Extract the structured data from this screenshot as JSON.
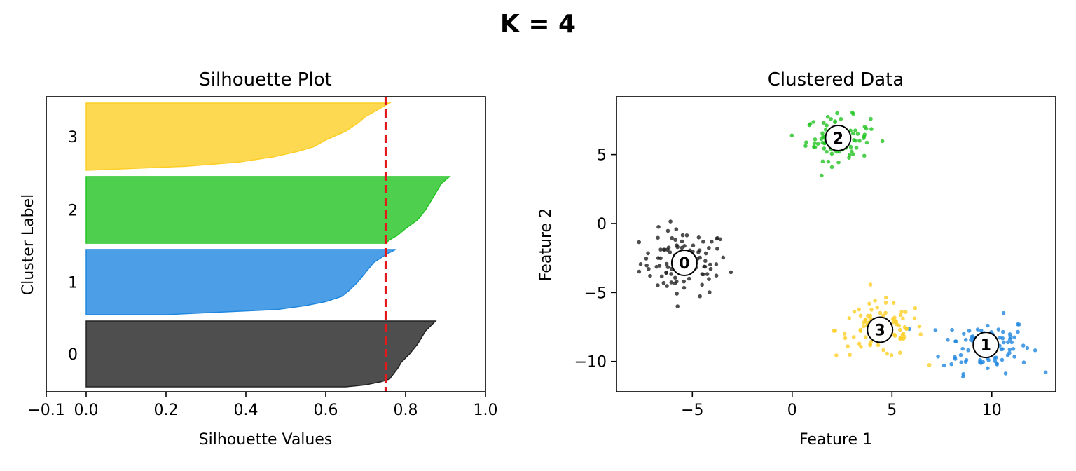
{
  "figure": {
    "title": "K = 4"
  },
  "chart_data": [
    {
      "type": "area",
      "title": "Silhouette Plot",
      "xlabel": "Silhouette Values",
      "ylabel": "Cluster Label",
      "xlim": [
        -0.1,
        1.0
      ],
      "xticks": [
        -0.1,
        0.0,
        0.2,
        0.4,
        0.6,
        0.8,
        1.0
      ],
      "xtick_labels": [
        "−0.1",
        "0.0",
        "0.2",
        "0.4",
        "0.6",
        "0.8",
        "1.0"
      ],
      "average_silhouette": 0.75,
      "average_line_color": "#e31a1c",
      "series": [
        {
          "name": "0",
          "color": "#222222",
          "max": 0.875,
          "profile": [
            [
              0,
              0.875
            ],
            [
              0.15,
              0.85
            ],
            [
              0.35,
              0.83
            ],
            [
              0.5,
              0.81
            ],
            [
              0.62,
              0.79
            ],
            [
              0.72,
              0.78
            ],
            [
              0.8,
              0.77
            ],
            [
              0.88,
              0.76
            ],
            [
              0.92,
              0.74
            ],
            [
              0.97,
              0.7
            ],
            [
              1,
              0.65
            ]
          ]
        },
        {
          "name": "1",
          "color": "#1f87e0",
          "max": 0.775,
          "profile": [
            [
              0,
              0.775
            ],
            [
              0.08,
              0.75
            ],
            [
              0.2,
              0.72
            ],
            [
              0.35,
              0.7
            ],
            [
              0.5,
              0.68
            ],
            [
              0.62,
              0.66
            ],
            [
              0.72,
              0.64
            ],
            [
              0.8,
              0.6
            ],
            [
              0.86,
              0.55
            ],
            [
              0.92,
              0.48
            ],
            [
              0.97,
              0.3
            ],
            [
              1,
              0.2
            ]
          ]
        },
        {
          "name": "2",
          "color": "#22c322",
          "max": 0.91,
          "profile": [
            [
              0,
              0.91
            ],
            [
              0.1,
              0.89
            ],
            [
              0.3,
              0.87
            ],
            [
              0.5,
              0.85
            ],
            [
              0.65,
              0.83
            ],
            [
              0.78,
              0.8
            ],
            [
              0.88,
              0.78
            ],
            [
              0.95,
              0.76
            ],
            [
              1,
              0.75
            ]
          ]
        },
        {
          "name": "3",
          "color": "#fcce25",
          "max": 0.76,
          "profile": [
            [
              0,
              0.76
            ],
            [
              0.1,
              0.73
            ],
            [
              0.2,
              0.7
            ],
            [
              0.3,
              0.68
            ],
            [
              0.42,
              0.65
            ],
            [
              0.55,
              0.6
            ],
            [
              0.65,
              0.57
            ],
            [
              0.72,
              0.53
            ],
            [
              0.8,
              0.47
            ],
            [
              0.88,
              0.38
            ],
            [
              0.94,
              0.25
            ],
            [
              1,
              0.0
            ]
          ]
        }
      ]
    },
    {
      "type": "scatter",
      "title": "Clustered Data",
      "xlabel": "Feature 1",
      "ylabel": "Feature 2",
      "xlim": [
        -8.8,
        13.2
      ],
      "ylim": [
        -12.2,
        9.2
      ],
      "xticks": [
        -5,
        0,
        5,
        10
      ],
      "xtick_labels": [
        "−5",
        "0",
        "5",
        "10"
      ],
      "yticks": [
        5,
        0,
        -5,
        -10
      ],
      "ytick_labels": [
        "5",
        "0",
        "−5",
        "−10"
      ],
      "series": [
        {
          "name": "0",
          "color": "#222222",
          "center": [
            -5.4,
            -2.85
          ],
          "spread": [
            1.1,
            1.2
          ],
          "count": 100
        },
        {
          "name": "1",
          "color": "#1f87e0",
          "center": [
            9.7,
            -8.8
          ],
          "spread": [
            1.1,
            1.0
          ],
          "count": 100
        },
        {
          "name": "2",
          "color": "#22c322",
          "center": [
            2.3,
            6.2
          ],
          "spread": [
            0.8,
            0.8
          ],
          "count": 100
        },
        {
          "name": "3",
          "color": "#fcce25",
          "center": [
            4.4,
            -7.7
          ],
          "spread": [
            1.1,
            1.0
          ],
          "count": 100
        }
      ]
    }
  ]
}
